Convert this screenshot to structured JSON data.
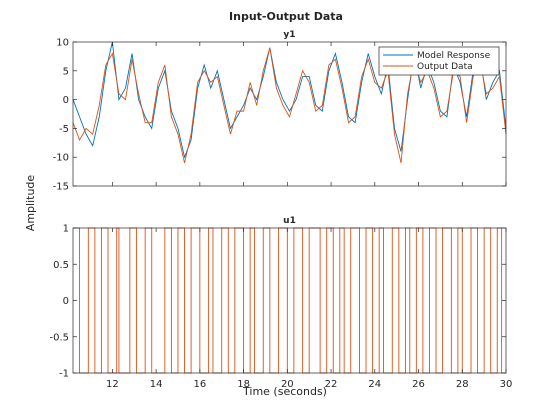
{
  "chart_data": {
    "type": "line",
    "title": "Input-Output Data",
    "xlabel": "Time (seconds)",
    "ylabel": "Amplitude",
    "xlim": [
      10.2,
      30
    ],
    "x_ticks": [
      12,
      14,
      16,
      18,
      20,
      22,
      24,
      26,
      28,
      30
    ],
    "x_tick_labels": [
      "12",
      "14",
      "16",
      "18",
      "20",
      "22",
      "24",
      "26",
      "28",
      "30"
    ],
    "colors": {
      "model": "#0072BD",
      "output": "#D95319"
    },
    "subplots": [
      {
        "title": "y1",
        "ylim": [
          -15,
          10
        ],
        "y_ticks": [
          -15,
          -10,
          -5,
          0,
          5,
          10
        ],
        "y_tick_labels": [
          "-15",
          "-10",
          "-5",
          "0",
          "5",
          "10"
        ],
        "legend": {
          "location": "top-right",
          "entries": [
            "Model Response",
            "Output Data"
          ]
        },
        "series": [
          {
            "name": "Model Response",
            "color": "#0072BD",
            "x": [
              10.2,
              10.5,
              10.8,
              11.1,
              11.4,
              11.7,
              12.0,
              12.3,
              12.6,
              12.9,
              13.2,
              13.5,
              13.8,
              14.1,
              14.4,
              14.7,
              15.0,
              15.3,
              15.6,
              15.9,
              16.2,
              16.5,
              16.8,
              17.1,
              17.4,
              17.7,
              18.0,
              18.3,
              18.6,
              18.9,
              19.2,
              19.5,
              19.8,
              20.1,
              20.4,
              20.7,
              21.0,
              21.3,
              21.6,
              21.9,
              22.2,
              22.5,
              22.8,
              23.1,
              23.4,
              23.7,
              24.0,
              24.3,
              24.6,
              24.9,
              25.2,
              25.5,
              25.8,
              26.1,
              26.4,
              26.7,
              27.0,
              27.3,
              27.6,
              27.9,
              28.2,
              28.5,
              28.8,
              29.1,
              29.4,
              29.7,
              30.0
            ],
            "y": [
              0,
              -3,
              -6,
              -8,
              -3,
              5,
              10,
              0,
              2,
              8,
              0,
              -3,
              -5,
              2,
              5,
              -2,
              -5,
              -10,
              -7,
              2,
              6,
              2,
              5,
              0,
              -5,
              -3,
              -1,
              2,
              0,
              4,
              9,
              3,
              0,
              -2,
              0,
              4,
              4,
              -1,
              -2,
              5,
              8,
              3,
              -3,
              -4,
              3,
              8,
              4,
              1,
              6,
              -5,
              -9,
              0,
              8,
              2,
              6,
              3,
              -2,
              -3,
              6,
              3,
              -3,
              5,
              8,
              0,
              3,
              5,
              -5
            ]
          },
          {
            "name": "Output Data",
            "color": "#D95319",
            "x": [
              10.2,
              10.5,
              10.8,
              11.1,
              11.4,
              11.7,
              12.0,
              12.3,
              12.6,
              12.9,
              13.2,
              13.5,
              13.8,
              14.1,
              14.4,
              14.7,
              15.0,
              15.3,
              15.6,
              15.9,
              16.2,
              16.5,
              16.8,
              17.1,
              17.4,
              17.7,
              18.0,
              18.3,
              18.6,
              18.9,
              19.2,
              19.5,
              19.8,
              20.1,
              20.4,
              20.7,
              21.0,
              21.3,
              21.6,
              21.9,
              22.2,
              22.5,
              22.8,
              23.1,
              23.4,
              23.7,
              24.0,
              24.3,
              24.6,
              24.9,
              25.2,
              25.5,
              25.8,
              26.1,
              26.4,
              26.7,
              27.0,
              27.3,
              27.6,
              27.9,
              28.2,
              28.5,
              28.8,
              29.1,
              29.4,
              29.7,
              30.0
            ],
            "y": [
              -4,
              -7,
              -5,
              -6,
              -1,
              6,
              8,
              1,
              0,
              7,
              1,
              -4,
              -4,
              3,
              6,
              -3,
              -6,
              -11,
              -6,
              3,
              5,
              3,
              4,
              -1,
              -6,
              -2,
              -2,
              3,
              -1,
              5,
              9,
              2,
              -1,
              -3,
              1,
              5,
              3,
              -2,
              -1,
              6,
              7,
              2,
              -4,
              -3,
              4,
              7,
              3,
              2,
              5,
              -6,
              -11,
              1,
              7,
              3,
              5,
              2,
              -3,
              -2,
              5,
              4,
              -4,
              4,
              7,
              1,
              2,
              4,
              -6
            ]
          }
        ]
      },
      {
        "title": "u1",
        "ylim": [
          -1,
          1
        ],
        "y_ticks": [
          -1,
          -0.5,
          0,
          0.5,
          1
        ],
        "y_tick_labels": [
          "-1",
          "-0.5",
          "0",
          "0.5",
          "1"
        ],
        "series": [
          {
            "name": "u1",
            "color": "#D95319",
            "step": true,
            "switch_times": [
              10.5,
              10.9,
              11.2,
              11.5,
              11.8,
              12.2,
              12.3,
              12.8,
              13.1,
              13.5,
              13.8,
              14.4,
              14.7,
              15.0,
              15.3,
              15.6,
              16.0,
              16.4,
              16.6,
              17.0,
              17.3,
              17.6,
              18.0,
              18.3,
              18.5,
              18.9,
              19.2,
              19.6,
              20.0,
              20.3,
              20.7,
              21.0,
              21.5,
              21.8,
              22.1,
              22.4,
              22.6,
              22.9,
              23.3,
              23.6,
              23.9,
              24.2,
              24.4,
              24.8,
              25.1,
              25.4,
              25.6,
              25.9,
              26.2,
              26.5,
              26.8,
              27.1,
              27.5,
              27.8,
              28.0,
              28.4,
              28.7,
              29.0,
              29.3,
              29.6,
              29.8
            ],
            "initial_value": 1
          }
        ]
      }
    ]
  }
}
